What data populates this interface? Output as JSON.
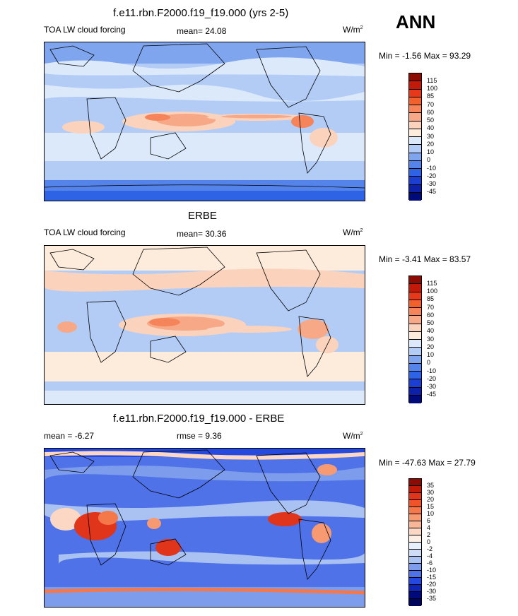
{
  "season": "ANN",
  "panels": [
    {
      "title": "f.e11.rbn.F2000.f19_f19.000 (yrs 2-5)",
      "left_label": "TOA LW cloud forcing",
      "center_label": "mean=  24.08",
      "units_main": "W/m",
      "units_sup": "2",
      "minmax": "Min =  -1.56 Max =  93.29",
      "colorbar_labels": [
        "115",
        "100",
        "85",
        "70",
        "60",
        "50",
        "40",
        "30",
        "20",
        "10",
        "0",
        "-10",
        "-20",
        "-30",
        "-45"
      ]
    },
    {
      "title": "ERBE",
      "left_label": "TOA LW cloud forcing",
      "center_label": "mean=  30.36",
      "units_main": "W/m",
      "units_sup": "2",
      "minmax": "Min =  -3.41 Max =  83.57",
      "colorbar_labels": [
        "115",
        "100",
        "85",
        "70",
        "60",
        "50",
        "40",
        "30",
        "20",
        "10",
        "0",
        "-10",
        "-20",
        "-30",
        "-45"
      ]
    },
    {
      "title": "f.e11.rbn.F2000.f19_f19.000 - ERBE",
      "left_label": "mean =  -6.27",
      "center_label": "rmse =   9.36",
      "units_main": "W/m",
      "units_sup": "2",
      "minmax": "Min = -47.63 Max =  27.79",
      "colorbar_labels": [
        "35",
        "30",
        "20",
        "15",
        "10",
        "6",
        "4",
        "2",
        "0",
        "-2",
        "-4",
        "-6",
        "-10",
        "-15",
        "-20",
        "-30",
        "-35"
      ]
    }
  ],
  "colors": {
    "abs_scale": [
      "#8c0b02",
      "#c21a08",
      "#e8381a",
      "#f2602e",
      "#f5845a",
      "#f7a987",
      "#fbd3bd",
      "#fdebdc",
      "#dbe9fb",
      "#b3ccf5",
      "#7fa5ee",
      "#5484ea",
      "#2f63e6",
      "#1c3fd2",
      "#0c20a8",
      "#000a7a"
    ],
    "diff_scale": [
      "#8c0b02",
      "#c21a08",
      "#e0351a",
      "#ee5428",
      "#f5784a",
      "#f79a72",
      "#f8b898",
      "#fbd7c4",
      "#fdeee4",
      "#e7effb",
      "#cfdcf6",
      "#aac2f2",
      "#7d9cec",
      "#4f72e8",
      "#2548de",
      "#0f25b8",
      "#000a7a",
      "#00055c"
    ],
    "land_outline": "#000000"
  }
}
